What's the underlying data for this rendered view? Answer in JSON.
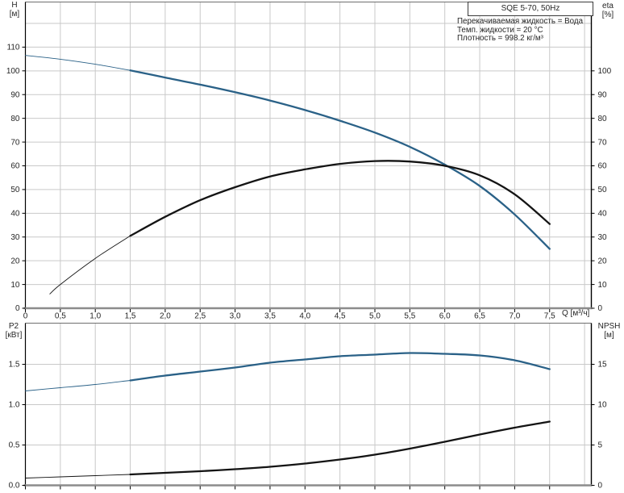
{
  "header": {
    "model": "SQE 5-70, 50Hz",
    "conditions": [
      "Перекачиваемая жидкость = Вода",
      "Темп. жидкости = 20 °C",
      "Плотность = 998.2 кг/м³"
    ]
  },
  "colors": {
    "curve_blue": "#2a6187",
    "curve_black": "#141414",
    "grid": "#c9c9c9",
    "axis": "#000000",
    "baseline": "#8c8c8c",
    "frame_top": "#6e6e6e",
    "text": "#262626"
  },
  "chart_data": [
    {
      "id": "head-efficiency",
      "type": "line",
      "x_axis": {
        "label": "Q [м³/ч]",
        "min": 0,
        "max": 8.1,
        "grid_ticks": [
          0.5,
          1,
          1.5,
          2,
          2.5,
          3,
          3.5,
          4,
          4.5,
          5,
          5.5,
          6,
          6.5,
          7,
          7.5,
          8
        ],
        "ticks": [
          {
            "v": 0,
            "t": "0"
          },
          {
            "v": 0.5,
            "t": "0,5"
          },
          {
            "v": 1,
            "t": "1,0"
          },
          {
            "v": 1.5,
            "t": "1,5"
          },
          {
            "v": 2,
            "t": "2,0"
          },
          {
            "v": 2.5,
            "t": "2,5"
          },
          {
            "v": 3,
            "t": "3,0"
          },
          {
            "v": 3.5,
            "t": "3,5"
          },
          {
            "v": 4,
            "t": "4,0"
          },
          {
            "v": 4.5,
            "t": "4,5"
          },
          {
            "v": 5,
            "t": "5,0"
          },
          {
            "v": 5.5,
            "t": "5,5"
          },
          {
            "v": 6,
            "t": "6,0"
          },
          {
            "v": 6.5,
            "t": "6,5"
          },
          {
            "v": 7,
            "t": "7,0"
          },
          {
            "v": 7.5,
            "t": "7,5"
          }
        ],
        "show_labels": true
      },
      "y_left": {
        "label": "H",
        "unit": "[м]",
        "min": 0,
        "max": 129,
        "grid_ticks": [
          10,
          20,
          30,
          40,
          50,
          60,
          70,
          80,
          90,
          100,
          110,
          120
        ],
        "ticks": [
          {
            "v": 0,
            "t": "0"
          },
          {
            "v": 10,
            "t": "10"
          },
          {
            "v": 20,
            "t": "20"
          },
          {
            "v": 30,
            "t": "30"
          },
          {
            "v": 40,
            "t": "40"
          },
          {
            "v": 50,
            "t": "50"
          },
          {
            "v": 60,
            "t": "60"
          },
          {
            "v": 70,
            "t": "70"
          },
          {
            "v": 80,
            "t": "80"
          },
          {
            "v": 90,
            "t": "90"
          },
          {
            "v": 100,
            "t": "100"
          },
          {
            "v": 110,
            "t": "110"
          }
        ]
      },
      "y_right": {
        "label": "eta",
        "unit": "[%]",
        "min": 0,
        "max": 129,
        "ticks": [
          {
            "v": 0,
            "t": "0"
          },
          {
            "v": 10,
            "t": "10"
          },
          {
            "v": 20,
            "t": "20"
          },
          {
            "v": 30,
            "t": "30"
          },
          {
            "v": 40,
            "t": "40"
          },
          {
            "v": 50,
            "t": "50"
          },
          {
            "v": 60,
            "t": "60"
          },
          {
            "v": 70,
            "t": "70"
          },
          {
            "v": 80,
            "t": "80"
          },
          {
            "v": 90,
            "t": "90"
          },
          {
            "v": 100,
            "t": "100"
          }
        ]
      },
      "series": [
        {
          "name": "H-curve",
          "color_key": "curve_blue",
          "axis": "left",
          "thin_until": 1.5,
          "points": [
            [
              0,
              106.5
            ],
            [
              0.5,
              104.9
            ],
            [
              1,
              102.8
            ],
            [
              1.5,
              100.2
            ],
            [
              2,
              97.2
            ],
            [
              2.5,
              94.2
            ],
            [
              3,
              91
            ],
            [
              3.5,
              87.5
            ],
            [
              4,
              83.5
            ],
            [
              4.5,
              79
            ],
            [
              5,
              74
            ],
            [
              5.5,
              68
            ],
            [
              6,
              60.5
            ],
            [
              6.5,
              51.5
            ],
            [
              7,
              39.5
            ],
            [
              7.5,
              25
            ]
          ]
        },
        {
          "name": "eta-curve",
          "color_key": "curve_black",
          "axis": "right",
          "thin_until": 1.5,
          "points": [
            [
              0.35,
              6
            ],
            [
              0.5,
              10
            ],
            [
              1,
              21
            ],
            [
              1.5,
              30.5
            ],
            [
              2,
              38.5
            ],
            [
              2.5,
              45.5
            ],
            [
              3,
              51
            ],
            [
              3.5,
              55.5
            ],
            [
              4,
              58.5
            ],
            [
              4.5,
              60.8
            ],
            [
              5,
              62
            ],
            [
              5.5,
              61.8
            ],
            [
              6,
              60
            ],
            [
              6.5,
              56
            ],
            [
              7,
              48
            ],
            [
              7.5,
              35.5
            ]
          ]
        }
      ]
    },
    {
      "id": "power-npsh",
      "type": "line",
      "x_axis": {
        "label": "",
        "min": 0,
        "max": 8.1,
        "grid_ticks": [
          0.5,
          1,
          1.5,
          2,
          2.5,
          3,
          3.5,
          4,
          4.5,
          5,
          5.5,
          6,
          6.5,
          7,
          7.5,
          8
        ],
        "ticks": [
          {
            "v": 0,
            "t": ""
          },
          {
            "v": 0.5,
            "t": ""
          },
          {
            "v": 1,
            "t": ""
          },
          {
            "v": 1.5,
            "t": ""
          },
          {
            "v": 2,
            "t": ""
          },
          {
            "v": 2.5,
            "t": ""
          },
          {
            "v": 3,
            "t": ""
          },
          {
            "v": 3.5,
            "t": ""
          },
          {
            "v": 4,
            "t": ""
          },
          {
            "v": 4.5,
            "t": ""
          },
          {
            "v": 5,
            "t": ""
          },
          {
            "v": 5.5,
            "t": ""
          },
          {
            "v": 6,
            "t": ""
          },
          {
            "v": 6.5,
            "t": ""
          },
          {
            "v": 7,
            "t": ""
          },
          {
            "v": 7.5,
            "t": ""
          }
        ],
        "show_labels": false
      },
      "y_left": {
        "label": "P2",
        "unit": "[кВт]",
        "min": 0,
        "max": 2.01,
        "grid_ticks": [
          0.5,
          1,
          1.5
        ],
        "ticks": [
          {
            "v": 0,
            "t": "0.0"
          },
          {
            "v": 0.5,
            "t": "0.5"
          },
          {
            "v": 1,
            "t": "1.0"
          },
          {
            "v": 1.5,
            "t": "1.5"
          }
        ]
      },
      "y_right": {
        "label": "NPSH",
        "unit": "[м]",
        "min": 0,
        "max": 20.1,
        "ticks": [
          {
            "v": 0,
            "t": "0"
          },
          {
            "v": 5,
            "t": "5"
          },
          {
            "v": 10,
            "t": "10"
          },
          {
            "v": 15,
            "t": "15"
          }
        ]
      },
      "series": [
        {
          "name": "P2-curve",
          "color_key": "curve_blue",
          "axis": "left",
          "thin_until": 1.5,
          "points": [
            [
              0,
              1.17
            ],
            [
              0.5,
              1.21
            ],
            [
              1,
              1.25
            ],
            [
              1.5,
              1.3
            ],
            [
              2,
              1.36
            ],
            [
              2.5,
              1.41
            ],
            [
              3,
              1.46
            ],
            [
              3.5,
              1.52
            ],
            [
              4,
              1.56
            ],
            [
              4.5,
              1.6
            ],
            [
              5,
              1.62
            ],
            [
              5.5,
              1.64
            ],
            [
              6,
              1.63
            ],
            [
              6.5,
              1.61
            ],
            [
              7,
              1.55
            ],
            [
              7.5,
              1.44
            ]
          ]
        },
        {
          "name": "NPSH-curve",
          "color_key": "curve_black",
          "axis": "right",
          "thin_until": 1.5,
          "points": [
            [
              0,
              0.9
            ],
            [
              0.5,
              1.05
            ],
            [
              1,
              1.2
            ],
            [
              1.5,
              1.35
            ],
            [
              2,
              1.55
            ],
            [
              2.5,
              1.75
            ],
            [
              3,
              2.0
            ],
            [
              3.5,
              2.3
            ],
            [
              4,
              2.7
            ],
            [
              4.5,
              3.2
            ],
            [
              5,
              3.8
            ],
            [
              5.5,
              4.55
            ],
            [
              6,
              5.4
            ],
            [
              6.5,
              6.3
            ],
            [
              7,
              7.15
            ],
            [
              7.5,
              7.9
            ]
          ]
        }
      ]
    }
  ]
}
